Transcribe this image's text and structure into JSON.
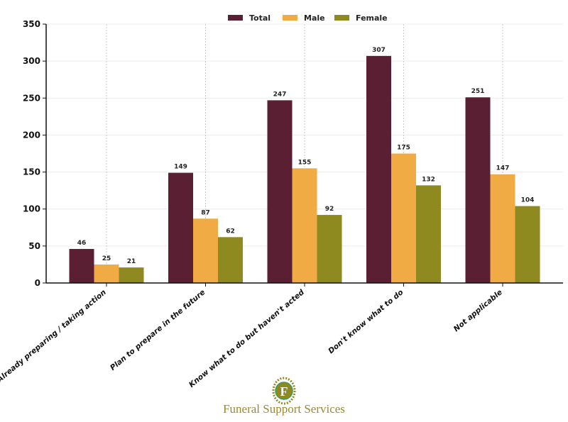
{
  "chart_data": {
    "type": "bar",
    "title": "",
    "xlabel": "",
    "ylabel": "",
    "ylim": [
      0,
      350
    ],
    "yticks": [
      0,
      50,
      100,
      150,
      200,
      250,
      300,
      350
    ],
    "grid": true,
    "legend_position": "top-center",
    "categories": [
      "Already preparing / taking action",
      "Plan to prepare in the future",
      "Know what to do but haven't acted",
      "Don't know what to do",
      "Not applicable"
    ],
    "series": [
      {
        "name": "Total",
        "color": "#5a1f33",
        "values": [
          46,
          149,
          247,
          307,
          251
        ]
      },
      {
        "name": "Male",
        "color": "#f0ab45",
        "values": [
          25,
          87,
          155,
          175,
          147
        ]
      },
      {
        "name": "Female",
        "color": "#8f8a1f",
        "values": [
          21,
          62,
          92,
          132,
          104
        ]
      }
    ]
  },
  "branding": {
    "name": "Funeral Support Services",
    "logo_letter": "F"
  }
}
